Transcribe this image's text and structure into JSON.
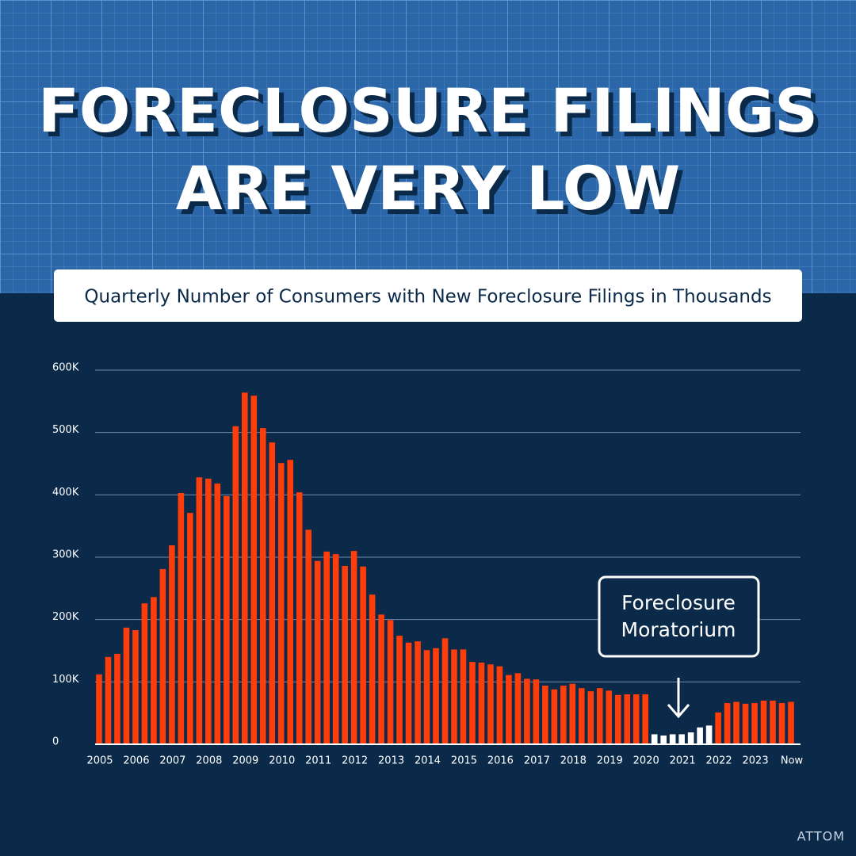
{
  "chart_data": {
    "type": "bar",
    "title": [
      "FORECLOSURE FILINGS",
      "ARE VERY LOW"
    ],
    "subtitle": "Quarterly Number of Consumers with New Foreclosure Filings in Thousands",
    "annotation": [
      "Foreclosure",
      "Moratorium"
    ],
    "source": "ATTOM",
    "categories": [
      "2005",
      null,
      null,
      null,
      "2006",
      null,
      null,
      null,
      "2007",
      null,
      null,
      null,
      "2008",
      null,
      null,
      null,
      "2009",
      null,
      null,
      null,
      "2010",
      null,
      null,
      null,
      "2011",
      null,
      null,
      null,
      "2012",
      null,
      null,
      null,
      "2013",
      null,
      null,
      null,
      "2014",
      null,
      null,
      null,
      "2015",
      null,
      null,
      null,
      "2016",
      null,
      null,
      null,
      "2017",
      null,
      null,
      null,
      "2018",
      null,
      null,
      null,
      "2019",
      null,
      null,
      null,
      "2020",
      null,
      null,
      null,
      "2021",
      null,
      null,
      null,
      "2022",
      null,
      null,
      null,
      "2023",
      null,
      null,
      null,
      "Now"
    ],
    "values": [
      112,
      140,
      145,
      187,
      183,
      226,
      236,
      281,
      319,
      403,
      371,
      428,
      426,
      418,
      398,
      510,
      564,
      559,
      507,
      484,
      451,
      456,
      404,
      344,
      294,
      309,
      305,
      286,
      310,
      285,
      240,
      208,
      199,
      174,
      163,
      165,
      151,
      154,
      170,
      152,
      152,
      132,
      131,
      128,
      125,
      111,
      114,
      105,
      104,
      94,
      88,
      94,
      97,
      90,
      85,
      90,
      86,
      79,
      80,
      80,
      80,
      16,
      14,
      16,
      16,
      19,
      27,
      30,
      51,
      66,
      68,
      65,
      66,
      70,
      70,
      66,
      68
    ],
    "colors": [
      "#ff3d0a",
      "#ff3d0a",
      "#ff3d0a",
      "#ff3d0a",
      "#ff3d0a",
      "#ff3d0a",
      "#ff3d0a",
      "#ff3d0a",
      "#ff3d0a",
      "#ff3d0a",
      "#ff3d0a",
      "#ff3d0a",
      "#ff3d0a",
      "#ff3d0a",
      "#ff3d0a",
      "#ff3d0a",
      "#ff3d0a",
      "#ff3d0a",
      "#ff3d0a",
      "#ff3d0a",
      "#ff3d0a",
      "#ff3d0a",
      "#ff3d0a",
      "#ff3d0a",
      "#ff3d0a",
      "#ff3d0a",
      "#ff3d0a",
      "#ff3d0a",
      "#ff3d0a",
      "#ff3d0a",
      "#ff3d0a",
      "#ff3d0a",
      "#ff3d0a",
      "#ff3d0a",
      "#ff3d0a",
      "#ff3d0a",
      "#ff3d0a",
      "#ff3d0a",
      "#ff3d0a",
      "#ff3d0a",
      "#ff3d0a",
      "#ff3d0a",
      "#ff3d0a",
      "#ff3d0a",
      "#ff3d0a",
      "#ff3d0a",
      "#ff3d0a",
      "#ff3d0a",
      "#ff3d0a",
      "#ff3d0a",
      "#ff3d0a",
      "#ff3d0a",
      "#ff3d0a",
      "#ff3d0a",
      "#ff3d0a",
      "#ff3d0a",
      "#ff3d0a",
      "#ff3d0a",
      "#ff3d0a",
      "#ff3d0a",
      "#ff3d0a",
      "#ffffff",
      "#ffffff",
      "#ffffff",
      "#ffffff",
      "#ffffff",
      "#ffffff",
      "#ffffff",
      "#ff3d0a",
      "#ff3d0a",
      "#ff3d0a",
      "#ff3d0a",
      "#ff3d0a",
      "#ff3d0a",
      "#ff3d0a",
      "#ff3d0a",
      "#ff3d0a"
    ],
    "ylim": [
      0,
      600
    ],
    "yticks": [
      0,
      {
        "value": 100,
        "label": "100K"
      },
      {
        "value": 200,
        "label": "200K"
      },
      {
        "value": 300,
        "label": "300K"
      },
      {
        "value": 400,
        "label": "400K"
      },
      {
        "value": 500,
        "label": "500K"
      },
      {
        "value": 600,
        "label": "600K"
      }
    ],
    "grid": true
  }
}
